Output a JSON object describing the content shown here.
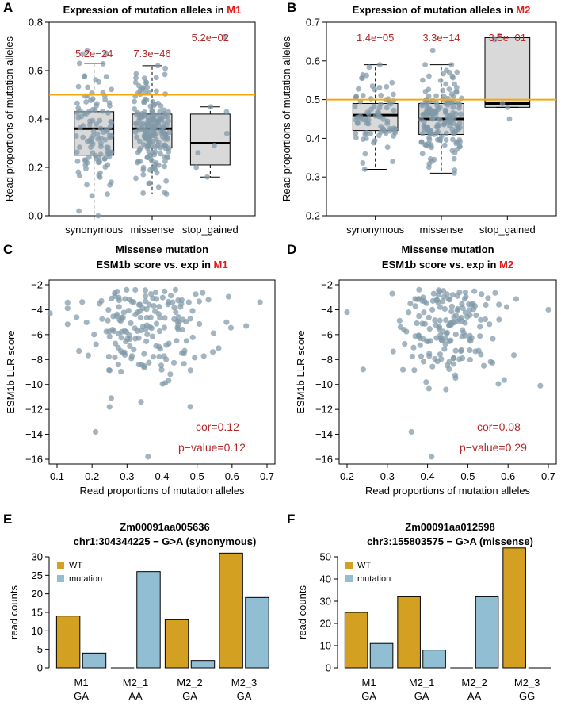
{
  "colors": {
    "dot": "#7f98a8",
    "box": "#d9d9d9",
    "orange": "#f5a70f",
    "pval": "#b22a2a",
    "red": "#e31a1c",
    "wt": "#d4a021",
    "mut": "#92bed4"
  },
  "chart_data": [
    {
      "id": "A",
      "type": "box",
      "panel_letter": "A",
      "title_prefix": "Expression of mutation alleles in ",
      "title_highlight": "M1",
      "ylabel": "Read proportions of mutation alleles",
      "ylim": [
        0,
        0.8
      ],
      "yticks": [
        "0.0",
        "0.2",
        "0.4",
        "0.6",
        "0.8"
      ],
      "ytick_values": [
        0,
        0.2,
        0.4,
        0.6,
        0.8
      ],
      "reference_line": 0.5,
      "categories": [
        "synonymous",
        "missense",
        "stop_gained"
      ],
      "pvalues": [
        "5.2e−24",
        "7.3e−46",
        "5.2e−02"
      ],
      "boxes": [
        {
          "whisker_low": 0.0,
          "q1": 0.25,
          "median": 0.36,
          "q3": 0.43,
          "whisker_high": 0.63,
          "n_points": 110
        },
        {
          "whisker_low": 0.09,
          "q1": 0.28,
          "median": 0.36,
          "q3": 0.42,
          "whisker_high": 0.62,
          "n_points": 190
        },
        {
          "whisker_low": 0.16,
          "q1": 0.21,
          "median": 0.3,
          "q3": 0.42,
          "whisker_high": 0.45,
          "n_points": 8
        }
      ],
      "stop_points": [
        0.74,
        0.45,
        0.43,
        0.34,
        0.29,
        0.26,
        0.2,
        0.16
      ]
    },
    {
      "id": "B",
      "type": "box",
      "panel_letter": "B",
      "title_prefix": "Expression of mutation alleles in ",
      "title_highlight": "M2",
      "ylabel": "Read proportions of mutation alleles",
      "ylim": [
        0.2,
        0.7
      ],
      "yticks": [
        "0.2",
        "0.3",
        "0.4",
        "0.5",
        "0.6",
        "0.7"
      ],
      "ytick_values": [
        0.2,
        0.3,
        0.4,
        0.5,
        0.6,
        0.7
      ],
      "reference_line": 0.5,
      "categories": [
        "synonymous",
        "missense",
        "stop_gained"
      ],
      "pvalues": [
        "1.4e−05",
        "3.3e−14",
        "3.5e−01"
      ],
      "boxes": [
        {
          "whisker_low": 0.32,
          "q1": 0.42,
          "median": 0.46,
          "q3": 0.49,
          "whisker_high": 0.59,
          "n_points": 80
        },
        {
          "whisker_low": 0.31,
          "q1": 0.41,
          "median": 0.45,
          "q3": 0.49,
          "whisker_high": 0.59,
          "n_points": 170
        },
        {
          "whisker_low": 0.48,
          "q1": 0.48,
          "median": 0.49,
          "q3": 0.66,
          "whisker_high": 0.66,
          "n_points": 5
        }
      ],
      "stop_points": [
        0.665,
        0.655,
        0.49,
        0.48,
        0.45
      ]
    },
    {
      "id": "C",
      "type": "scatter",
      "panel_letter": "C",
      "title_line1": "Missense mutation",
      "title_line2_prefix": "ESM1b score vs. exp in ",
      "title_highlight": "M1",
      "xlabel": "Read proportions of mutation alleles",
      "ylabel": "ESM1b LLR score",
      "xlim": [
        0.1,
        0.7
      ],
      "ylim": [
        -16,
        -2
      ],
      "xticks": [
        "0.1",
        "0.2",
        "0.3",
        "0.4",
        "0.5",
        "0.6",
        "0.7"
      ],
      "xtick_values": [
        0.1,
        0.2,
        0.3,
        0.4,
        0.5,
        0.6,
        0.7
      ],
      "yticks": [
        "−2",
        "−4",
        "−6",
        "−8",
        "−10",
        "−12",
        "−14",
        "−16"
      ],
      "ytick_values": [
        -2,
        -4,
        -6,
        -8,
        -10,
        -12,
        -14,
        -16
      ],
      "cor_label": "cor=0.12",
      "pvalue_label": "p−value=0.12",
      "x_center": 0.37,
      "x_sd": 0.11,
      "y_center": -5.2,
      "y_sd": 2.2,
      "n_points": 180,
      "fixed_points": [
        [
          0.08,
          -4.3
        ],
        [
          0.68,
          -3.4
        ],
        [
          0.36,
          -15.8
        ],
        [
          0.21,
          -13.8
        ],
        [
          0.25,
          -11.8
        ],
        [
          0.34,
          -11.4
        ]
      ]
    },
    {
      "id": "D",
      "type": "scatter",
      "panel_letter": "D",
      "title_line1": "Missense mutation",
      "title_line2_prefix": "ESM1b score vs. exp in ",
      "title_highlight": "M2",
      "xlabel": "Read proportions of mutation alleles",
      "ylabel": "ESM1b LLR score",
      "xlim": [
        0.2,
        0.7
      ],
      "ylim": [
        -16,
        -2
      ],
      "xticks": [
        "0.2",
        "0.3",
        "0.4",
        "0.5",
        "0.6",
        "0.7"
      ],
      "xtick_values": [
        0.2,
        0.3,
        0.4,
        0.5,
        0.6,
        0.7
      ],
      "yticks": [
        "−2",
        "−4",
        "−6",
        "−8",
        "−10",
        "−12",
        "−14",
        "−16"
      ],
      "ytick_values": [
        -2,
        -4,
        -6,
        -8,
        -10,
        -12,
        -14,
        -16
      ],
      "cor_label": "cor=0.08",
      "pvalue_label": "p−value=0.29",
      "x_center": 0.45,
      "x_sd": 0.06,
      "y_center": -5.2,
      "y_sd": 2.2,
      "n_points": 170,
      "fixed_points": [
        [
          0.2,
          -4.2
        ],
        [
          0.24,
          -8.8
        ],
        [
          0.7,
          -4.0
        ],
        [
          0.68,
          -10.1
        ],
        [
          0.36,
          -13.8
        ],
        [
          0.41,
          -15.8
        ]
      ]
    },
    {
      "id": "E",
      "type": "bar",
      "panel_letter": "E",
      "title_line1": "Zm00091aa005636",
      "title_line2": "chr1:304344225 − G>A (synonymous)",
      "ylabel": "read counts",
      "ylim": [
        0,
        30
      ],
      "yticks": [
        "0",
        "5",
        "10",
        "15",
        "20",
        "25",
        "30"
      ],
      "ytick_values": [
        0,
        5,
        10,
        15,
        20,
        25,
        30
      ],
      "categories": [
        "M1",
        "M2_1",
        "M2_2",
        "M2_3"
      ],
      "genotypes": [
        "GA",
        "AA",
        "GA",
        "GA"
      ],
      "series": [
        {
          "name": "WT",
          "values": [
            14,
            0,
            13,
            31
          ]
        },
        {
          "name": "mutation",
          "values": [
            4,
            26,
            2,
            19
          ]
        }
      ],
      "legend": [
        "WT",
        "mutation"
      ]
    },
    {
      "id": "F",
      "type": "bar",
      "panel_letter": "F",
      "title_line1": "Zm00091aa012598",
      "title_line2": "chr3:155803575 − G>A (missense)",
      "ylabel": "read counts",
      "ylim": [
        0,
        50
      ],
      "yticks": [
        "0",
        "10",
        "20",
        "30",
        "40",
        "50"
      ],
      "ytick_values": [
        0,
        10,
        20,
        30,
        40,
        50
      ],
      "categories": [
        "M1",
        "M2_1",
        "M2_2",
        "M2_3"
      ],
      "genotypes": [
        "GA",
        "GA",
        "AA",
        "GG"
      ],
      "series": [
        {
          "name": "WT",
          "values": [
            25,
            32,
            0,
            54
          ]
        },
        {
          "name": "mutation",
          "values": [
            11,
            8,
            32,
            0
          ]
        }
      ],
      "legend": [
        "WT",
        "mutation"
      ]
    }
  ]
}
